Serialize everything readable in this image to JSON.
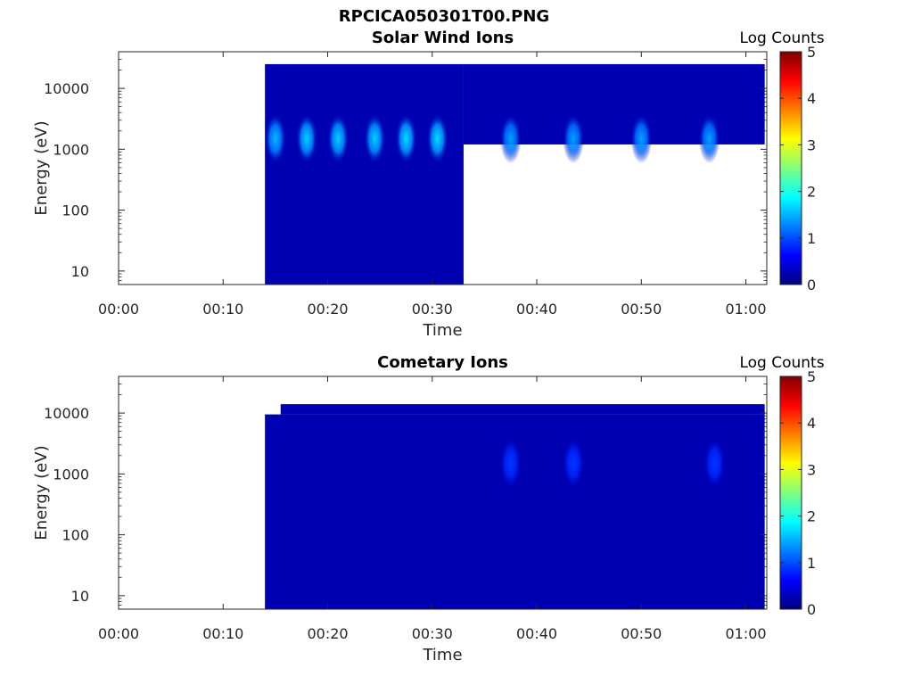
{
  "figure_title": "RPCICA050301T00.PNG",
  "chart_data": [
    {
      "type": "heatmap",
      "title": "Solar Wind Ions",
      "xlabel": "Time",
      "ylabel": "Energy (eV)",
      "xticks": [
        "00:00",
        "00:10",
        "00:20",
        "00:30",
        "00:40",
        "00:50",
        "01:00"
      ],
      "yticks": [
        "10",
        "100",
        "1000",
        "10000"
      ],
      "xlim_minutes": [
        0,
        62
      ],
      "ylim_eV": [
        6,
        40000
      ],
      "yscale": "log",
      "colorbar": {
        "label": "Log Counts",
        "min": 0,
        "max": 5,
        "ticks": [
          "0",
          "1",
          "2",
          "3",
          "4",
          "5"
        ],
        "colormap": "jet"
      },
      "data_coverage": [
        {
          "t_start_min": 14.0,
          "t_end_min": 33.0,
          "e_min_eV": 6,
          "e_max_eV": 25000
        },
        {
          "t_start_min": 33.0,
          "t_end_min": 61.8,
          "e_min_eV": 1200,
          "e_max_eV": 25000
        }
      ],
      "peaks": [
        {
          "t_min": 15.0,
          "e_eV": 1500,
          "log_counts": 1.6
        },
        {
          "t_min": 18.0,
          "e_eV": 1500,
          "log_counts": 1.8
        },
        {
          "t_min": 21.0,
          "e_eV": 1500,
          "log_counts": 1.8
        },
        {
          "t_min": 24.5,
          "e_eV": 1500,
          "log_counts": 1.8
        },
        {
          "t_min": 27.5,
          "e_eV": 1500,
          "log_counts": 1.9
        },
        {
          "t_min": 30.5,
          "e_eV": 1500,
          "log_counts": 1.9
        },
        {
          "t_min": 37.5,
          "e_eV": 1500,
          "log_counts": 1.4
        },
        {
          "t_min": 43.5,
          "e_eV": 1500,
          "log_counts": 1.4
        },
        {
          "t_min": 50.0,
          "e_eV": 1500,
          "log_counts": 1.4
        },
        {
          "t_min": 56.5,
          "e_eV": 1500,
          "log_counts": 1.4
        }
      ]
    },
    {
      "type": "heatmap",
      "title": "Cometary Ions",
      "xlabel": "Time",
      "ylabel": "Energy (eV)",
      "xticks": [
        "00:00",
        "00:10",
        "00:20",
        "00:30",
        "00:40",
        "00:50",
        "01:00"
      ],
      "yticks": [
        "10",
        "100",
        "1000",
        "10000"
      ],
      "xlim_minutes": [
        0,
        62
      ],
      "ylim_eV": [
        6,
        40000
      ],
      "yscale": "log",
      "colorbar": {
        "label": "Log Counts",
        "min": 0,
        "max": 5,
        "ticks": [
          "0",
          "1",
          "2",
          "3",
          "4",
          "5"
        ],
        "colormap": "jet"
      },
      "data_coverage": [
        {
          "t_start_min": 14.0,
          "t_end_min": 61.8,
          "e_min_eV": 6,
          "e_max_eV": 9500
        },
        {
          "t_start_min": 15.5,
          "t_end_min": 61.8,
          "e_min_eV": 9500,
          "e_max_eV": 14000
        }
      ],
      "peaks": [
        {
          "t_min": 37.5,
          "e_eV": 1500,
          "log_counts": 0.5
        },
        {
          "t_min": 43.5,
          "e_eV": 1500,
          "log_counts": 0.5
        },
        {
          "t_min": 57.0,
          "e_eV": 1500,
          "log_counts": 0.5
        }
      ]
    }
  ]
}
